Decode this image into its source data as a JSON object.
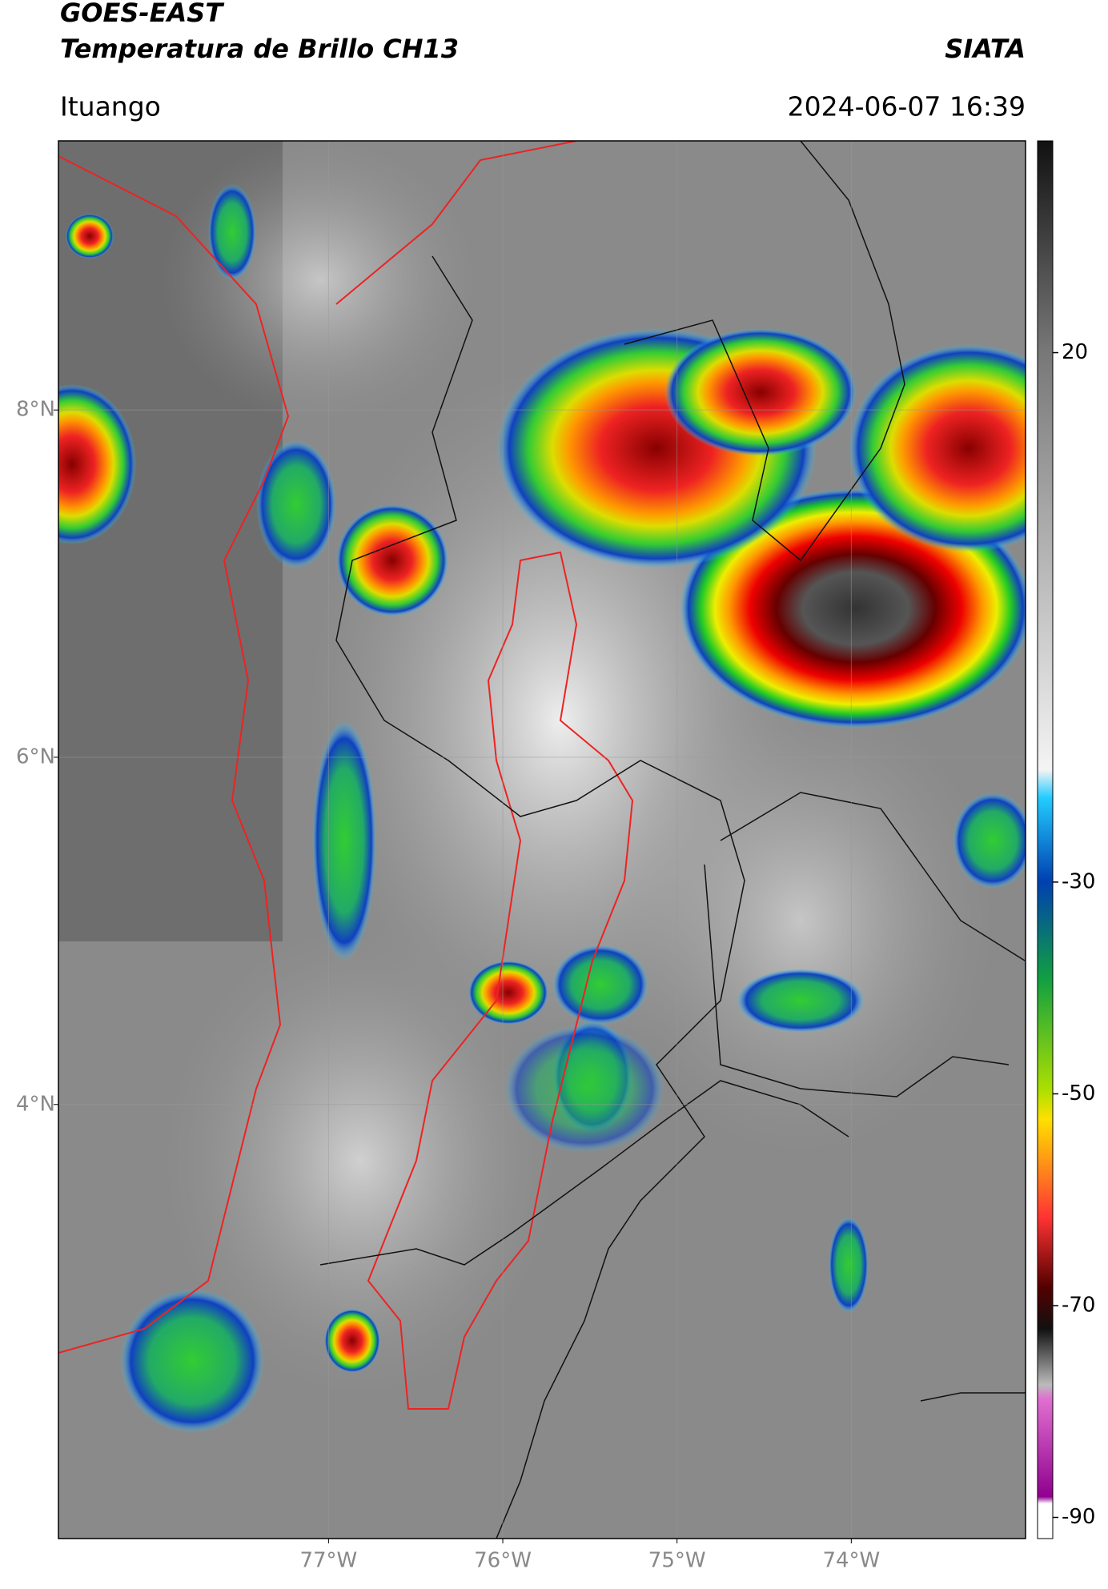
{
  "header": {
    "title": "GOES-EAST",
    "subtitle": "Temperatura de Brillo CH13",
    "source": "SIATA",
    "location": "Ituango",
    "datetime": "2024-06-07 16:39"
  },
  "map": {
    "xlim": [
      -78.55,
      -73.0
    ],
    "ylim": [
      1.5,
      9.55
    ],
    "xticks": [
      {
        "value": -77,
        "label": "77°W"
      },
      {
        "value": -76,
        "label": "76°W"
      },
      {
        "value": -75,
        "label": "75°W"
      },
      {
        "value": -74,
        "label": "74°W"
      }
    ],
    "yticks": [
      {
        "value": 4,
        "label": "4°N"
      },
      {
        "value": 6,
        "label": "6°N"
      },
      {
        "value": 8,
        "label": "8°N"
      }
    ],
    "grid": true
  },
  "colorbar": {
    "lim": [
      -92,
      40
    ],
    "ticks": [
      -90,
      -70,
      -50,
      -30,
      20
    ]
  }
}
